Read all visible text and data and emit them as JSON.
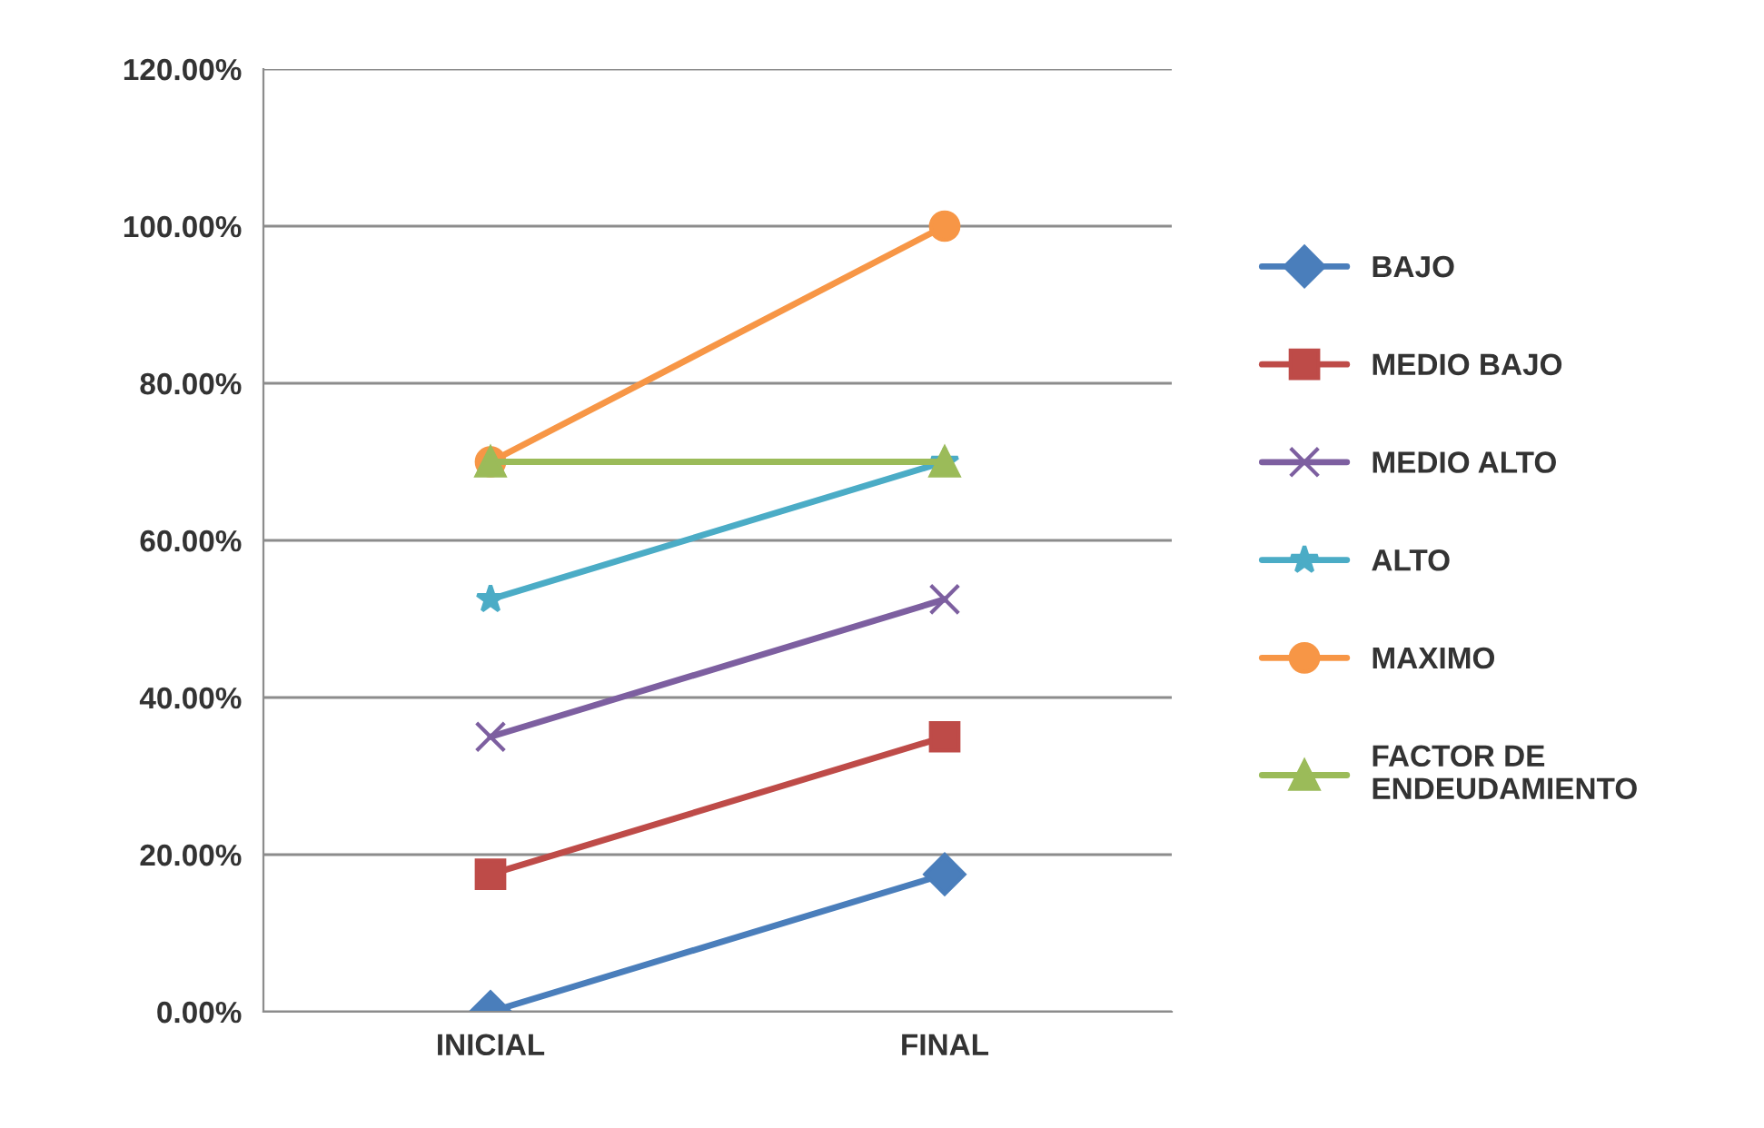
{
  "chart_data": {
    "type": "line",
    "categories": [
      "INICIAL",
      "FINAL"
    ],
    "series": [
      {
        "name": "BAJO",
        "color": "#4a7ebb",
        "values": [
          0,
          17.5
        ],
        "marker": "diamond"
      },
      {
        "name": "MEDIO BAJO",
        "color": "#be4b48",
        "values": [
          17.5,
          35
        ],
        "marker": "square"
      },
      {
        "name": "MEDIO ALTO",
        "color": "#7d5fa0",
        "values": [
          35,
          52.5
        ],
        "marker": "cross"
      },
      {
        "name": "ALTO",
        "color": "#4bacc6",
        "values": [
          52.5,
          70
        ],
        "marker": "star"
      },
      {
        "name": "MAXIMO",
        "color": "#f79646",
        "values": [
          70,
          100
        ],
        "marker": "circle"
      },
      {
        "name": "FACTOR DE\nENDEUDAMIENTO",
        "color": "#9bbb59",
        "values": [
          70,
          70
        ],
        "marker": "triangle"
      }
    ],
    "ylim": [
      0,
      120
    ],
    "yticks": [
      {
        "value": 0,
        "label": "0.00%"
      },
      {
        "value": 20,
        "label": "20.00%"
      },
      {
        "value": 40,
        "label": "40.00%"
      },
      {
        "value": 60,
        "label": "60.00%"
      },
      {
        "value": 80,
        "label": "80.00%"
      },
      {
        "value": 100,
        "label": "100.00%"
      },
      {
        "value": 120,
        "label": "120.00%"
      }
    ],
    "grid": "y",
    "legend": "right",
    "line_style": "solid"
  }
}
